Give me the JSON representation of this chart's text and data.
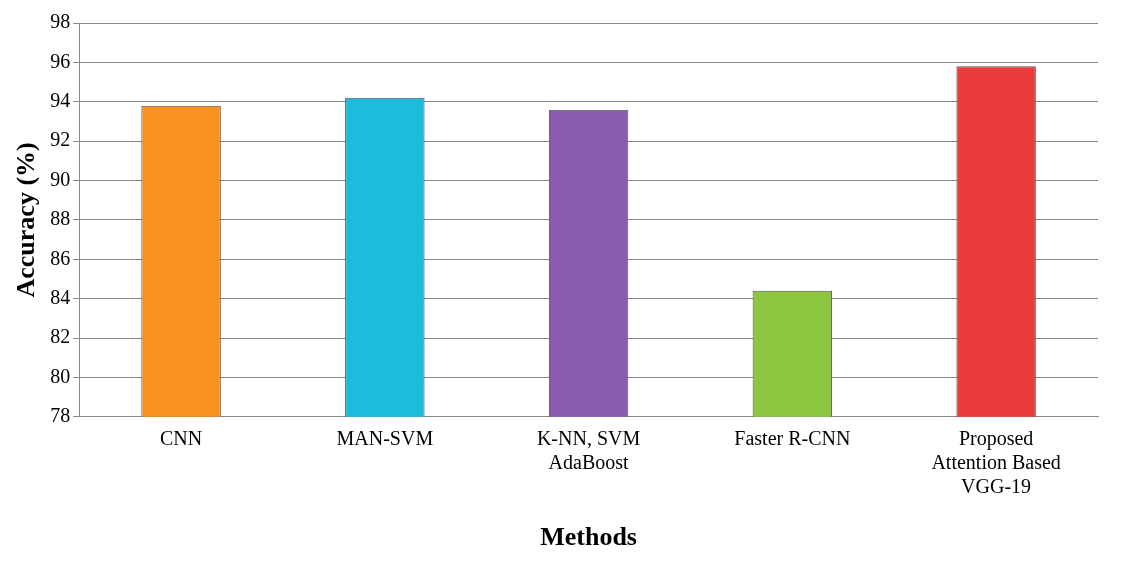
{
  "chart_data": {
    "type": "bar",
    "xlabel": "Methods",
    "ylabel": "Accuracy (%)",
    "categories": [
      "CNN",
      "MAN-SVM",
      "K-NN, SVM AdaBoost",
      "Faster R-CNN",
      "Proposed Attention Based VGG-19"
    ],
    "values": [
      93.8,
      94.2,
      93.6,
      84.4,
      95.8
    ],
    "colors": [
      "#f7931e",
      "#1bbcdc",
      "#8a5cb0",
      "#8dc63f",
      "#ea3c3c"
    ],
    "ylim": [
      78,
      98
    ],
    "yticks": [
      78,
      80,
      82,
      84,
      86,
      88,
      90,
      92,
      94,
      96,
      98
    ],
    "grid": "y"
  }
}
